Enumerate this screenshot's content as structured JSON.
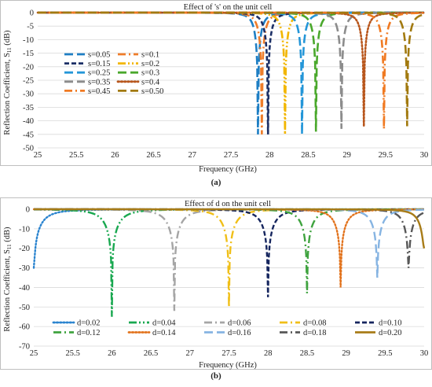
{
  "chart_data": [
    {
      "type": "line",
      "title": "Effect of 's' on the unit cell",
      "xlabel": "Frequency (GHz)",
      "ylabel": "Reflection Coefficient, S11 (dB)",
      "ylabel_main": "Reflection Coefficient, S",
      "ylabel_sub": "11",
      "ylabel_tail": " (dB)",
      "xlim": [
        25,
        30
      ],
      "ylim": [
        -50,
        0
      ],
      "xticks": [
        "25",
        "25.5",
        "26",
        "26.5",
        "27",
        "27.5",
        "28",
        "28.5",
        "29",
        "29.5",
        "30"
      ],
      "yticks": [
        "0",
        "-5",
        "-10",
        "-15",
        "-20",
        "-25",
        "-30",
        "-35",
        "-40",
        "-45",
        "-50"
      ],
      "grid": "horizontal",
      "legend": "left",
      "caption": "(a)",
      "series": [
        {
          "name": "s=0.05",
          "color": "#1f7fc4",
          "dash": "long-dash",
          "f0": 27.85,
          "min": -45,
          "q": 120
        },
        {
          "name": "s=0.1",
          "color": "#ef7d2a",
          "dash": "dash-dot",
          "f0": 27.9,
          "min": -45,
          "q": 120
        },
        {
          "name": "s=0.15",
          "color": "#1b2f66",
          "dash": "short-dash",
          "f0": 27.98,
          "min": -45,
          "q": 120
        },
        {
          "name": "s=0.2",
          "color": "#f2b600",
          "dash": "dash-dot-dot",
          "f0": 28.2,
          "min": -45,
          "q": 120
        },
        {
          "name": "s=0.25",
          "color": "#2496d8",
          "dash": "long-dash",
          "f0": 28.42,
          "min": -45,
          "q": 120
        },
        {
          "name": "s=0.3",
          "color": "#4aa82c",
          "dash": "long-dash",
          "f0": 28.6,
          "min": -44,
          "q": 120
        },
        {
          "name": "s=0.35",
          "color": "#8c8c8c",
          "dash": "long-dash",
          "f0": 28.93,
          "min": -43,
          "q": 120
        },
        {
          "name": "s=0.4",
          "color": "#b8561c",
          "dash": "dotted",
          "f0": 29.22,
          "min": -42,
          "q": 120
        },
        {
          "name": "s=0.45",
          "color": "#f07a22",
          "dash": "dash-dot",
          "f0": 29.48,
          "min": -43,
          "q": 120
        },
        {
          "name": "s=0.50",
          "color": "#a27a10",
          "dash": "long-dash",
          "f0": 29.78,
          "min": -42,
          "q": 120
        }
      ]
    },
    {
      "type": "line",
      "title": "Effect of d on the unit cell",
      "xlabel": "Frequency (GHz)",
      "ylabel": "Reflection Coefficient, S11 (dB)",
      "ylabel_main": "Reflection Coefficient, S",
      "ylabel_sub": "11",
      "ylabel_tail": " (dB)",
      "xlim": [
        25,
        30
      ],
      "ylim": [
        -70,
        0
      ],
      "xticks": [
        "25",
        "25.5",
        "26",
        "26.5",
        "27",
        "27.5",
        "28",
        "28.5",
        "29",
        "29.5",
        "30"
      ],
      "yticks": [
        "0",
        "-10",
        "-20",
        "-30",
        "-40",
        "-50",
        "-60",
        "-70"
      ],
      "grid": "horizontal",
      "legend": "bottom",
      "caption": "(b)",
      "series": [
        {
          "name": "d=0.02",
          "color": "#2b84cf",
          "dash": "dotted",
          "f0": 25.0,
          "min": -30,
          "q": 22
        },
        {
          "name": "d=0.04",
          "color": "#19a850",
          "dash": "dash-dot-dot",
          "f0": 26.0,
          "min": -55,
          "q": 26
        },
        {
          "name": "d=0.06",
          "color": "#a5a5a5",
          "dash": "dash-dot",
          "f0": 26.8,
          "min": -52,
          "q": 28
        },
        {
          "name": "d=0.08",
          "color": "#f0bf18",
          "dash": "dash-dot",
          "f0": 27.5,
          "min": -50,
          "q": 30
        },
        {
          "name": "d=0.10",
          "color": "#15255e",
          "dash": "short-dash",
          "f0": 28.0,
          "min": -45,
          "q": 32
        },
        {
          "name": "d=0.12",
          "color": "#3fa33f",
          "dash": "dash-dot",
          "f0": 28.5,
          "min": -43,
          "q": 38
        },
        {
          "name": "d=0.14",
          "color": "#e2731d",
          "dash": "dotted",
          "f0": 28.93,
          "min": -40,
          "q": 40
        },
        {
          "name": "d=0.16",
          "color": "#86b4e2",
          "dash": "long-dash",
          "f0": 29.4,
          "min": -35,
          "q": 45
        },
        {
          "name": "d=0.18",
          "color": "#575757",
          "dash": "dash-dot",
          "f0": 29.8,
          "min": -30,
          "q": 50
        },
        {
          "name": "d=0.20",
          "color": "#a87c18",
          "dash": "solid",
          "f0": 30.0,
          "min": -20,
          "q": 55
        }
      ]
    }
  ]
}
